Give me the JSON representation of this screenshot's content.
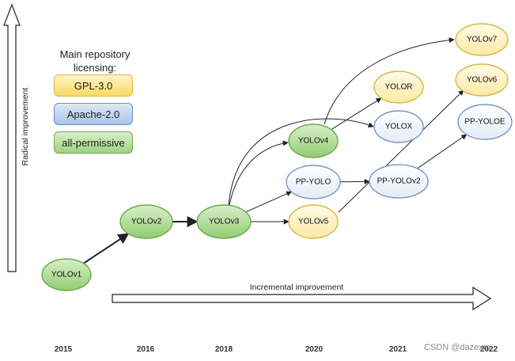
{
  "legend": {
    "title": "Main repository\nlicensing:",
    "items": [
      {
        "key": "gpl",
        "label": "GPL-3.0"
      },
      {
        "key": "apache",
        "label": "Apache-2.0"
      },
      {
        "key": "perm",
        "label": "all-permissive"
      }
    ]
  },
  "axes": {
    "y_label": "Radical improvement",
    "x_label": "Incremental improvement"
  },
  "years": [
    "2015",
    "2016",
    "2018",
    "2020",
    "2021",
    "2022"
  ],
  "nodes": [
    {
      "id": "yolov1",
      "label": "YOLOv1",
      "license": "perm"
    },
    {
      "id": "yolov2",
      "label": "YOLOv2",
      "license": "perm"
    },
    {
      "id": "yolov3",
      "label": "YOLOv3",
      "license": "perm"
    },
    {
      "id": "yolov4",
      "label": "YOLOv4",
      "license": "perm"
    },
    {
      "id": "ppyolo",
      "label": "PP-YOLO",
      "license": "apache"
    },
    {
      "id": "yolov5",
      "label": "YOLOv5",
      "license": "gpl"
    },
    {
      "id": "yolor",
      "label": "YOLOR",
      "license": "gpl"
    },
    {
      "id": "yolox",
      "label": "YOLOX",
      "license": "apache"
    },
    {
      "id": "ppyolov2",
      "label": "PP-YOLOv2",
      "license": "apache"
    },
    {
      "id": "yolov7",
      "label": "YOLOv7",
      "license": "gpl"
    },
    {
      "id": "yolov6",
      "label": "YOLOv6",
      "license": "gpl"
    },
    {
      "id": "ppyoloe",
      "label": "PP-YOLOE",
      "license": "apache"
    }
  ],
  "edges": [
    {
      "from": "yolov1",
      "to": "yolov2"
    },
    {
      "from": "yolov2",
      "to": "yolov3"
    },
    {
      "from": "yolov3",
      "to": "yolov4"
    },
    {
      "from": "yolov3",
      "to": "ppyolo"
    },
    {
      "from": "yolov3",
      "to": "yolov5"
    },
    {
      "from": "yolov3",
      "to": "yolox"
    },
    {
      "from": "yolov4",
      "to": "yolor"
    },
    {
      "from": "yolov4",
      "to": "yolov7"
    },
    {
      "from": "ppyolo",
      "to": "ppyolov2"
    },
    {
      "from": "ppyolov2",
      "to": "ppyoloe"
    },
    {
      "from": "yolov5",
      "to": "yolov6"
    }
  ],
  "colors": {
    "gpl": {
      "top": "#fffbe8",
      "bottom": "#fbe9a4",
      "stroke": "#d9b748"
    },
    "apache": {
      "top": "#ffffff",
      "bottom": "#e3ecf8",
      "stroke": "#7a96c6"
    },
    "perm": {
      "top": "#d9efc9",
      "bottom": "#93cc73",
      "stroke": "#6ea84e"
    }
  },
  "watermark": "CSDN @dazexm"
}
